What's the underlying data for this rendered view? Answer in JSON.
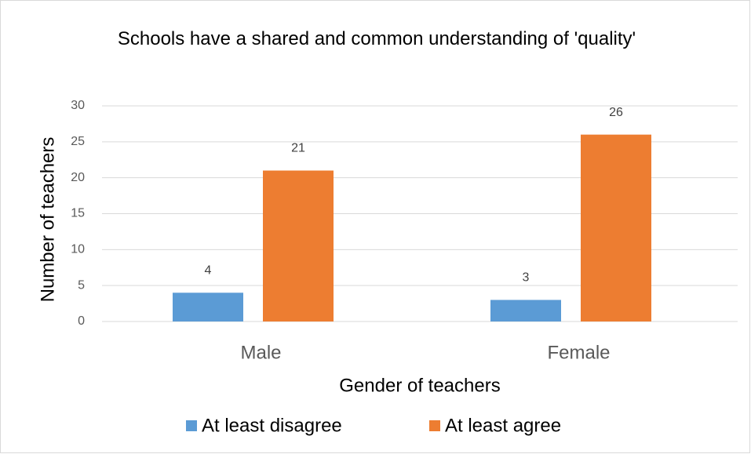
{
  "chart_data": {
    "type": "bar",
    "title": "Schools have a shared and common understanding of 'quality'",
    "x_label": "Gender of teachers",
    "y_label": "Number of teachers",
    "categories": [
      "Male",
      "Female"
    ],
    "series": [
      {
        "name": "At least disagree",
        "color": "#5b9bd5",
        "values": [
          4,
          3
        ]
      },
      {
        "name": "At least agree",
        "color": "#ed7d31",
        "values": [
          21,
          26
        ]
      }
    ],
    "ylim": [
      0,
      30
    ],
    "yticks": [
      0,
      5,
      10,
      15,
      20,
      25,
      30
    ],
    "grid": true,
    "legend": "bottom"
  }
}
